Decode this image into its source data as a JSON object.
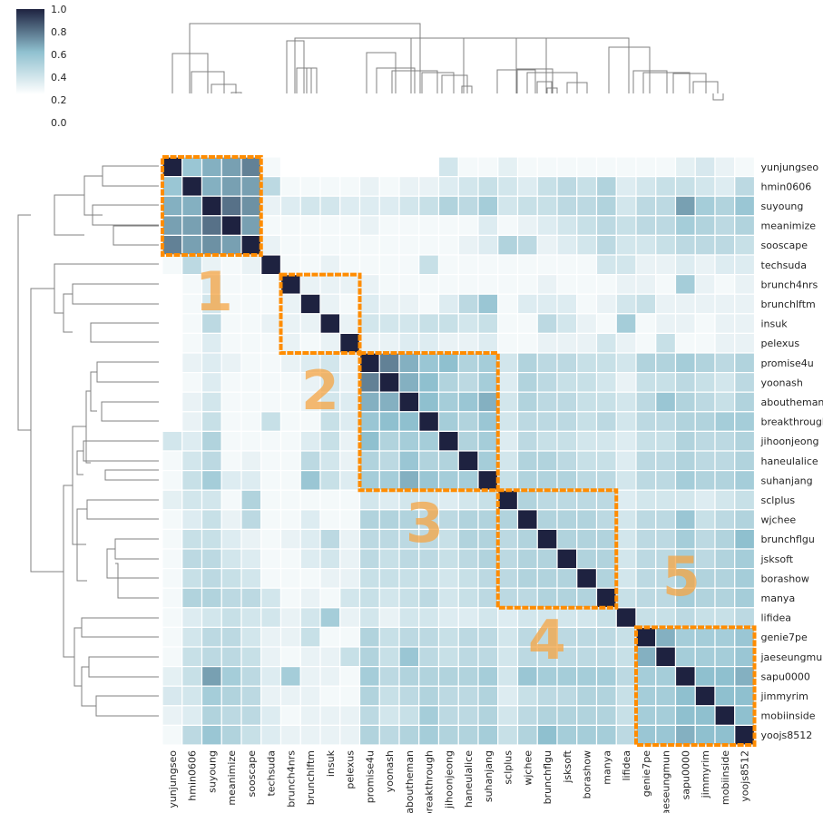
{
  "chart_data": {
    "type": "heatmap",
    "title": "",
    "labels": [
      "yunjungseo",
      "hmin0606",
      "suyoung",
      "meanimize",
      "sooscape",
      "techsuda",
      "brunch4nrs",
      "brunchlftm",
      "insuk",
      "pelexus",
      "promise4u",
      "yoonash",
      "aboutheman",
      "breakthrough",
      "jihoonjeong",
      "haneulalice",
      "suhanjang",
      "sclplus",
      "wjchee",
      "brunchflgu",
      "jsksoft",
      "borashow",
      "manya",
      "lifidea",
      "genie7pe",
      "jaeseungmun",
      "sapu0000",
      "jimmyrim",
      "mobiinside",
      "yoojs8512"
    ],
    "colorbar": {
      "min": 0.0,
      "max": 1.0,
      "ticks": [
        "1.0",
        "0.8",
        "0.6",
        "0.4",
        "0.2",
        "0.0"
      ]
    },
    "color_low": "#ffffff",
    "color_mid": "#8fc0cf",
    "color_high": "#1e2240",
    "highlight_color": "#ff8c00",
    "clusters": [
      {
        "label": "1",
        "start": 0,
        "end": 4
      },
      {
        "label": "2",
        "start": 6,
        "end": 9
      },
      {
        "label": "3",
        "start": 10,
        "end": 16
      },
      {
        "label": "4",
        "start": 17,
        "end": 22
      },
      {
        "label": "5",
        "start": 24,
        "end": 29
      }
    ],
    "values": [
      [
        1.0,
        0.45,
        0.55,
        0.6,
        0.7,
        0.05,
        0.0,
        0.0,
        0.0,
        0.0,
        0.0,
        0.0,
        0.0,
        0.0,
        0.2,
        0.05,
        0.05,
        0.12,
        0.05,
        0.05,
        0.05,
        0.05,
        0.05,
        0.05,
        0.05,
        0.05,
        0.12,
        0.18,
        0.1,
        0.05
      ],
      [
        0.45,
        1.0,
        0.55,
        0.6,
        0.6,
        0.3,
        0.05,
        0.05,
        0.05,
        0.05,
        0.1,
        0.05,
        0.1,
        0.1,
        0.15,
        0.2,
        0.25,
        0.2,
        0.15,
        0.25,
        0.3,
        0.25,
        0.35,
        0.15,
        0.2,
        0.25,
        0.25,
        0.2,
        0.15,
        0.3
      ],
      [
        0.55,
        0.55,
        1.0,
        0.75,
        0.65,
        0.1,
        0.15,
        0.2,
        0.2,
        0.15,
        0.15,
        0.15,
        0.2,
        0.25,
        0.35,
        0.3,
        0.4,
        0.2,
        0.25,
        0.25,
        0.3,
        0.3,
        0.35,
        0.2,
        0.3,
        0.3,
        0.6,
        0.4,
        0.35,
        0.45
      ],
      [
        0.6,
        0.6,
        0.75,
        1.0,
        0.6,
        0.05,
        0.05,
        0.05,
        0.05,
        0.05,
        0.1,
        0.05,
        0.05,
        0.05,
        0.05,
        0.05,
        0.15,
        0.05,
        0.1,
        0.15,
        0.2,
        0.25,
        0.3,
        0.25,
        0.3,
        0.3,
        0.4,
        0.35,
        0.3,
        0.35
      ],
      [
        0.7,
        0.6,
        0.65,
        0.6,
        1.0,
        0.1,
        0.05,
        0.05,
        0.05,
        0.05,
        0.05,
        0.05,
        0.05,
        0.05,
        0.05,
        0.1,
        0.15,
        0.35,
        0.3,
        0.1,
        0.15,
        0.2,
        0.3,
        0.2,
        0.2,
        0.25,
        0.3,
        0.3,
        0.3,
        0.25
      ],
      [
        0.05,
        0.3,
        0.1,
        0.05,
        0.1,
        1.0,
        0.05,
        0.05,
        0.1,
        0.05,
        0.05,
        0.05,
        0.05,
        0.25,
        0.05,
        0.05,
        0.05,
        0.05,
        0.05,
        0.05,
        0.05,
        0.05,
        0.2,
        0.2,
        0.1,
        0.1,
        0.15,
        0.1,
        0.15,
        0.15
      ],
      [
        0.0,
        0.05,
        0.15,
        0.05,
        0.05,
        0.05,
        1.0,
        0.1,
        0.1,
        0.1,
        0.1,
        0.05,
        0.05,
        0.05,
        0.05,
        0.05,
        0.05,
        0.05,
        0.05,
        0.1,
        0.05,
        0.05,
        0.05,
        0.1,
        0.1,
        0.05,
        0.4,
        0.1,
        0.05,
        0.1
      ],
      [
        0.0,
        0.05,
        0.2,
        0.05,
        0.05,
        0.05,
        0.1,
        1.0,
        0.1,
        0.05,
        0.15,
        0.1,
        0.1,
        0.05,
        0.15,
        0.3,
        0.45,
        0.05,
        0.15,
        0.15,
        0.15,
        0.05,
        0.1,
        0.2,
        0.25,
        0.1,
        0.1,
        0.1,
        0.1,
        0.1
      ],
      [
        0.0,
        0.05,
        0.3,
        0.05,
        0.05,
        0.1,
        0.1,
        0.1,
        1.0,
        0.1,
        0.2,
        0.2,
        0.2,
        0.25,
        0.25,
        0.2,
        0.25,
        0.05,
        0.05,
        0.3,
        0.2,
        0.1,
        0.05,
        0.4,
        0.05,
        0.1,
        0.1,
        0.05,
        0.1,
        0.1
      ],
      [
        0.0,
        0.05,
        0.15,
        0.05,
        0.05,
        0.05,
        0.1,
        0.05,
        0.1,
        1.0,
        0.1,
        0.1,
        0.15,
        0.15,
        0.1,
        0.1,
        0.15,
        0.05,
        0.05,
        0.1,
        0.1,
        0.1,
        0.2,
        0.1,
        0.05,
        0.25,
        0.05,
        0.05,
        0.1,
        0.1
      ],
      [
        0.0,
        0.1,
        0.15,
        0.1,
        0.05,
        0.05,
        0.1,
        0.15,
        0.2,
        0.1,
        1.0,
        0.7,
        0.55,
        0.45,
        0.5,
        0.35,
        0.4,
        0.2,
        0.35,
        0.3,
        0.3,
        0.25,
        0.25,
        0.2,
        0.35,
        0.35,
        0.4,
        0.35,
        0.3,
        0.35
      ],
      [
        0.0,
        0.05,
        0.15,
        0.05,
        0.05,
        0.05,
        0.05,
        0.1,
        0.2,
        0.1,
        0.7,
        1.0,
        0.55,
        0.5,
        0.35,
        0.3,
        0.4,
        0.15,
        0.35,
        0.3,
        0.25,
        0.25,
        0.2,
        0.1,
        0.25,
        0.25,
        0.3,
        0.25,
        0.2,
        0.3
      ],
      [
        0.0,
        0.1,
        0.2,
        0.05,
        0.05,
        0.05,
        0.05,
        0.1,
        0.2,
        0.15,
        0.55,
        0.55,
        1.0,
        0.5,
        0.4,
        0.45,
        0.55,
        0.2,
        0.35,
        0.3,
        0.3,
        0.25,
        0.25,
        0.2,
        0.3,
        0.45,
        0.35,
        0.3,
        0.25,
        0.35
      ],
      [
        0.0,
        0.1,
        0.25,
        0.05,
        0.05,
        0.25,
        0.05,
        0.05,
        0.25,
        0.15,
        0.45,
        0.5,
        0.5,
        1.0,
        0.4,
        0.35,
        0.45,
        0.2,
        0.3,
        0.3,
        0.3,
        0.25,
        0.3,
        0.2,
        0.3,
        0.3,
        0.35,
        0.35,
        0.4,
        0.4
      ],
      [
        0.2,
        0.15,
        0.35,
        0.05,
        0.05,
        0.05,
        0.05,
        0.15,
        0.25,
        0.1,
        0.5,
        0.35,
        0.4,
        0.4,
        1.0,
        0.35,
        0.4,
        0.15,
        0.3,
        0.25,
        0.25,
        0.2,
        0.2,
        0.15,
        0.25,
        0.25,
        0.35,
        0.3,
        0.3,
        0.35
      ],
      [
        0.05,
        0.2,
        0.3,
        0.05,
        0.1,
        0.05,
        0.05,
        0.3,
        0.2,
        0.1,
        0.35,
        0.3,
        0.45,
        0.35,
        0.35,
        1.0,
        0.4,
        0.2,
        0.35,
        0.35,
        0.3,
        0.25,
        0.25,
        0.15,
        0.3,
        0.3,
        0.35,
        0.3,
        0.3,
        0.35
      ],
      [
        0.05,
        0.25,
        0.4,
        0.15,
        0.15,
        0.05,
        0.05,
        0.45,
        0.25,
        0.15,
        0.4,
        0.4,
        0.55,
        0.45,
        0.4,
        0.4,
        1.0,
        0.25,
        0.35,
        0.35,
        0.35,
        0.3,
        0.3,
        0.2,
        0.3,
        0.3,
        0.4,
        0.35,
        0.35,
        0.4
      ],
      [
        0.12,
        0.2,
        0.2,
        0.05,
        0.35,
        0.05,
        0.05,
        0.05,
        0.05,
        0.05,
        0.2,
        0.15,
        0.2,
        0.2,
        0.15,
        0.2,
        0.25,
        1.0,
        0.35,
        0.3,
        0.3,
        0.3,
        0.3,
        0.15,
        0.2,
        0.2,
        0.2,
        0.15,
        0.2,
        0.25
      ],
      [
        0.05,
        0.15,
        0.25,
        0.1,
        0.3,
        0.05,
        0.05,
        0.15,
        0.05,
        0.05,
        0.35,
        0.35,
        0.35,
        0.3,
        0.3,
        0.35,
        0.35,
        0.35,
        1.0,
        0.35,
        0.35,
        0.35,
        0.3,
        0.2,
        0.3,
        0.3,
        0.45,
        0.25,
        0.3,
        0.35
      ],
      [
        0.05,
        0.25,
        0.25,
        0.15,
        0.1,
        0.05,
        0.1,
        0.15,
        0.3,
        0.1,
        0.3,
        0.3,
        0.3,
        0.3,
        0.25,
        0.35,
        0.35,
        0.3,
        0.35,
        1.0,
        0.35,
        0.35,
        0.35,
        0.2,
        0.3,
        0.3,
        0.4,
        0.3,
        0.35,
        0.5
      ],
      [
        0.05,
        0.3,
        0.3,
        0.2,
        0.15,
        0.05,
        0.05,
        0.15,
        0.2,
        0.1,
        0.3,
        0.25,
        0.3,
        0.3,
        0.25,
        0.3,
        0.35,
        0.3,
        0.35,
        0.35,
        1.0,
        0.35,
        0.35,
        0.2,
        0.3,
        0.3,
        0.4,
        0.3,
        0.35,
        0.4
      ],
      [
        0.05,
        0.25,
        0.3,
        0.25,
        0.2,
        0.05,
        0.05,
        0.05,
        0.1,
        0.1,
        0.25,
        0.25,
        0.25,
        0.25,
        0.2,
        0.25,
        0.3,
        0.3,
        0.35,
        0.35,
        0.35,
        1.0,
        0.35,
        0.2,
        0.3,
        0.3,
        0.4,
        0.35,
        0.35,
        0.4
      ],
      [
        0.05,
        0.35,
        0.35,
        0.3,
        0.3,
        0.2,
        0.05,
        0.1,
        0.05,
        0.2,
        0.25,
        0.2,
        0.25,
        0.3,
        0.2,
        0.25,
        0.3,
        0.3,
        0.3,
        0.35,
        0.35,
        0.35,
        1.0,
        0.25,
        0.3,
        0.3,
        0.4,
        0.35,
        0.35,
        0.4
      ],
      [
        0.05,
        0.15,
        0.2,
        0.25,
        0.2,
        0.2,
        0.1,
        0.2,
        0.4,
        0.1,
        0.2,
        0.1,
        0.2,
        0.2,
        0.15,
        0.15,
        0.2,
        0.15,
        0.2,
        0.2,
        0.2,
        0.2,
        0.25,
        1.0,
        0.25,
        0.25,
        0.3,
        0.25,
        0.25,
        0.3
      ],
      [
        0.05,
        0.2,
        0.3,
        0.3,
        0.2,
        0.1,
        0.1,
        0.25,
        0.05,
        0.05,
        0.35,
        0.25,
        0.3,
        0.3,
        0.25,
        0.3,
        0.3,
        0.2,
        0.3,
        0.3,
        0.3,
        0.3,
        0.3,
        0.25,
        1.0,
        0.55,
        0.4,
        0.4,
        0.4,
        0.45
      ],
      [
        0.05,
        0.25,
        0.3,
        0.3,
        0.25,
        0.1,
        0.05,
        0.1,
        0.1,
        0.25,
        0.35,
        0.25,
        0.45,
        0.3,
        0.25,
        0.3,
        0.3,
        0.2,
        0.3,
        0.3,
        0.3,
        0.3,
        0.3,
        0.25,
        0.55,
        1.0,
        0.4,
        0.4,
        0.4,
        0.45
      ],
      [
        0.12,
        0.25,
        0.6,
        0.4,
        0.3,
        0.15,
        0.4,
        0.1,
        0.1,
        0.05,
        0.4,
        0.3,
        0.35,
        0.35,
        0.35,
        0.35,
        0.4,
        0.2,
        0.45,
        0.4,
        0.4,
        0.4,
        0.4,
        0.3,
        0.4,
        0.4,
        1.0,
        0.5,
        0.5,
        0.55
      ],
      [
        0.18,
        0.2,
        0.4,
        0.35,
        0.3,
        0.1,
        0.1,
        0.1,
        0.05,
        0.05,
        0.35,
        0.25,
        0.3,
        0.35,
        0.3,
        0.3,
        0.35,
        0.15,
        0.25,
        0.3,
        0.3,
        0.35,
        0.35,
        0.25,
        0.4,
        0.4,
        0.5,
        1.0,
        0.5,
        0.5
      ],
      [
        0.1,
        0.15,
        0.35,
        0.3,
        0.3,
        0.15,
        0.05,
        0.1,
        0.1,
        0.1,
        0.3,
        0.2,
        0.25,
        0.4,
        0.3,
        0.3,
        0.35,
        0.2,
        0.3,
        0.35,
        0.35,
        0.35,
        0.35,
        0.25,
        0.4,
        0.4,
        0.5,
        0.5,
        1.0,
        0.5
      ],
      [
        0.05,
        0.3,
        0.45,
        0.35,
        0.25,
        0.15,
        0.1,
        0.1,
        0.1,
        0.1,
        0.35,
        0.3,
        0.35,
        0.4,
        0.35,
        0.35,
        0.4,
        0.25,
        0.35,
        0.5,
        0.4,
        0.4,
        0.4,
        0.3,
        0.45,
        0.45,
        0.55,
        0.5,
        0.5,
        1.0
      ]
    ]
  }
}
